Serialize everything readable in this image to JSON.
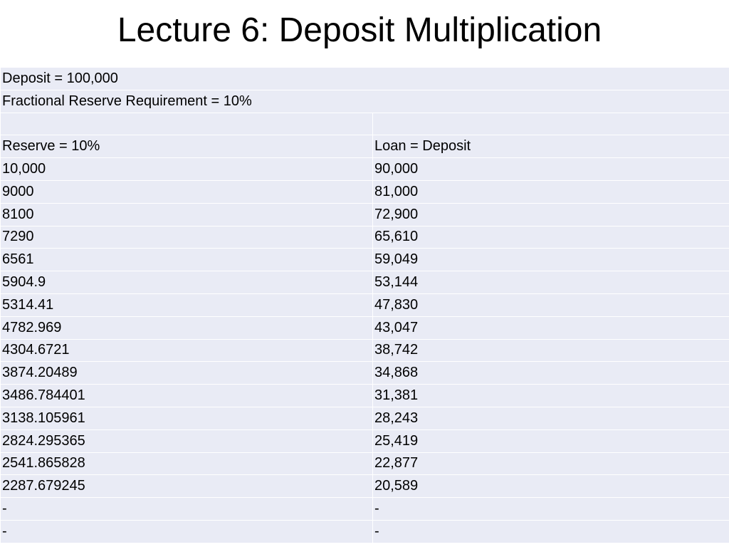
{
  "title": "Lecture 6: Deposit Multiplication",
  "header_rows": [
    "Deposit = 100,000",
    "Fractional Reserve Requirement = 10%"
  ],
  "columns": [
    "Reserve = 10%",
    "Loan = Deposit"
  ],
  "rows": [
    [
      "10,000",
      "90,000"
    ],
    [
      "9000",
      "81,000"
    ],
    [
      "8100",
      "72,900"
    ],
    [
      "7290",
      "65,610"
    ],
    [
      "6561",
      "59,049"
    ],
    [
      "5904.9",
      "53,144"
    ],
    [
      "5314.41",
      "47,830"
    ],
    [
      "4782.969",
      "43,047"
    ],
    [
      "4304.6721",
      "38,742"
    ],
    [
      "3874.20489",
      "34,868"
    ],
    [
      "3486.784401",
      "31,381"
    ],
    [
      "3138.105961",
      "28,243"
    ],
    [
      "2824.295365",
      "25,419"
    ],
    [
      "2541.865828",
      "22,877"
    ],
    [
      "2287.679245",
      "20,589"
    ],
    [
      "-",
      "-"
    ],
    [
      "-",
      "-"
    ]
  ]
}
